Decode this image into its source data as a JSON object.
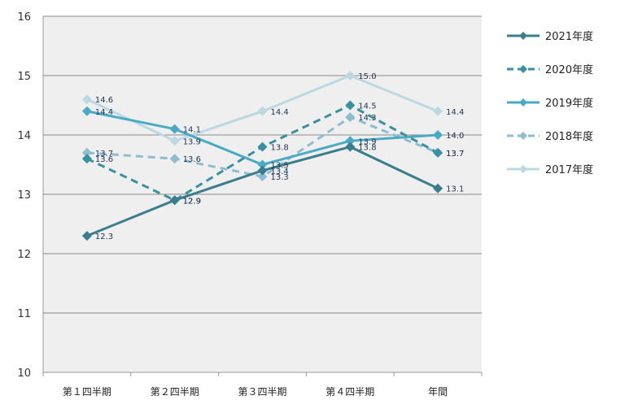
{
  "chart_data": {
    "type": "line",
    "categories": [
      "第１四半期",
      "第２四半期",
      "第３四半期",
      "第４四半期",
      "年間"
    ],
    "ylim": [
      10,
      16
    ],
    "yticks": [
      10,
      11,
      12,
      13,
      14,
      15,
      16
    ],
    "grid": true,
    "legend_position": "right",
    "series": [
      {
        "name": "2021年度",
        "values": [
          12.3,
          12.9,
          13.4,
          13.8,
          13.1
        ],
        "color": "#3a7d8c",
        "dashed": false
      },
      {
        "name": "2020年度",
        "values": [
          13.6,
          12.9,
          13.8,
          14.5,
          13.7
        ],
        "color": "#3a8fa0",
        "dashed": true
      },
      {
        "name": "2019年度",
        "values": [
          14.4,
          14.1,
          13.5,
          13.9,
          14.0
        ],
        "color": "#4aaac3",
        "dashed": false
      },
      {
        "name": "2018年度",
        "values": [
          13.7,
          13.6,
          13.3,
          14.3,
          13.7
        ],
        "color": "#8fbdd0",
        "dashed": true
      },
      {
        "name": "2017年度",
        "values": [
          14.6,
          13.9,
          14.4,
          15.0,
          14.4
        ],
        "color": "#bcd8e2",
        "dashed": false
      }
    ]
  }
}
